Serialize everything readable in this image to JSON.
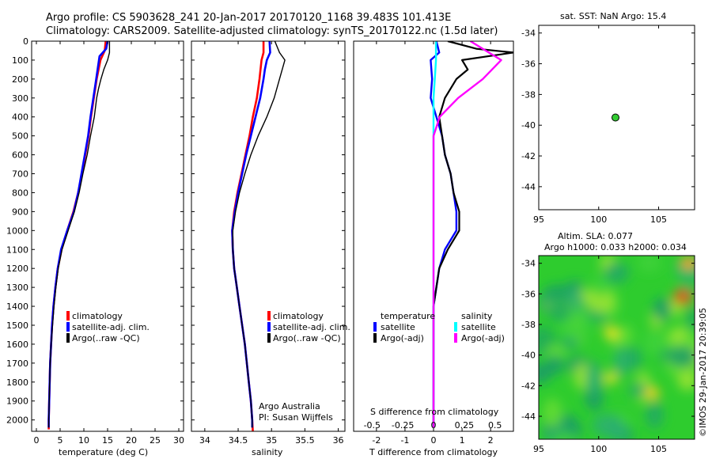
{
  "title_line1": "Argo profile: CS 5903628_241 20-Jan-2017 20170120_1168 39.483S 101.413E",
  "title_line2": "Climatology: CARS2009. Satellite-adjusted climatology: synTS_20170122.nc (1.5d later)",
  "map_title": "sat. SST: NaN Argo: 15.4",
  "sla_title_1": "Altim. SLA: 0.077",
  "sla_title_2": "Argo h1000: 0.033 h2000: 0.034",
  "credit_1": "Argo Australia",
  "credit_2": "PI: Susan Wijffels",
  "copyright": "©IMOS 29-Jan-2017 20:39:05",
  "colors": {
    "climatology": "#ff0000",
    "satellite": "#0000ff",
    "argo": "#000000",
    "salinity_satellite": "#00ffff",
    "salinity_argo": "#ff00ff",
    "float_marker": "#33cc33"
  },
  "chart_data": [
    {
      "type": "line",
      "xlabel": "temperature (deg C)",
      "ylabel": "",
      "xlim": [
        -1,
        31
      ],
      "ylim": [
        2060,
        0
      ],
      "xticks": [
        0,
        5,
        10,
        15,
        20,
        25,
        30
      ],
      "yticks": [
        0,
        100,
        200,
        300,
        400,
        500,
        600,
        700,
        800,
        900,
        1000,
        1100,
        1200,
        1300,
        1400,
        1500,
        1600,
        1700,
        1800,
        1900,
        2000
      ],
      "legend": [
        "climatology",
        "satellite-adj. clim.",
        "Argo(..raw -QC)"
      ],
      "series": [
        {
          "name": "climatology",
          "points": [
            [
              14.6,
              0
            ],
            [
              14.4,
              50
            ],
            [
              13.5,
              100
            ],
            [
              12.7,
              200
            ],
            [
              12.1,
              300
            ],
            [
              11.5,
              400
            ],
            [
              11.0,
              500
            ],
            [
              10.3,
              600
            ],
            [
              9.6,
              700
            ],
            [
              8.8,
              800
            ],
            [
              7.8,
              900
            ],
            [
              6.5,
              1000
            ],
            [
              5.3,
              1100
            ],
            [
              4.5,
              1200
            ],
            [
              4.0,
              1300
            ],
            [
              3.6,
              1400
            ],
            [
              3.3,
              1500
            ],
            [
              3.1,
              1600
            ],
            [
              2.9,
              1700
            ],
            [
              2.8,
              1800
            ],
            [
              2.7,
              1900
            ],
            [
              2.6,
              2000
            ],
            [
              2.6,
              2050
            ]
          ]
        },
        {
          "name": "satellite-adj. clim.",
          "points": [
            [
              15.0,
              0
            ],
            [
              14.7,
              40
            ],
            [
              13.3,
              80
            ],
            [
              12.6,
              200
            ],
            [
              12.0,
              300
            ],
            [
              11.4,
              400
            ],
            [
              10.9,
              500
            ],
            [
              10.2,
              600
            ],
            [
              9.5,
              700
            ],
            [
              8.8,
              800
            ],
            [
              7.9,
              900
            ],
            [
              6.5,
              1000
            ],
            [
              5.2,
              1100
            ],
            [
              4.5,
              1200
            ],
            [
              4.0,
              1300
            ],
            [
              3.6,
              1400
            ],
            [
              3.3,
              1500
            ],
            [
              3.1,
              1600
            ],
            [
              2.9,
              1700
            ],
            [
              2.8,
              1800
            ],
            [
              2.7,
              1900
            ],
            [
              2.6,
              2000
            ],
            [
              2.6,
              2040
            ]
          ]
        },
        {
          "name": "Argo(..raw -QC)",
          "points": [
            [
              15.4,
              0
            ],
            [
              15.4,
              60
            ],
            [
              15.0,
              100
            ],
            [
              14.2,
              150
            ],
            [
              13.6,
              200
            ],
            [
              13.1,
              250
            ],
            [
              12.7,
              300
            ],
            [
              12.2,
              400
            ],
            [
              11.4,
              500
            ],
            [
              10.7,
              600
            ],
            [
              9.8,
              700
            ],
            [
              9.0,
              800
            ],
            [
              8.0,
              900
            ],
            [
              6.7,
              1000
            ],
            [
              5.4,
              1100
            ],
            [
              4.6,
              1200
            ],
            [
              4.1,
              1300
            ],
            [
              3.7,
              1400
            ],
            [
              3.4,
              1500
            ],
            [
              3.1,
              1600
            ],
            [
              2.9,
              1700
            ],
            [
              2.8,
              1800
            ],
            [
              2.7,
              1900
            ],
            [
              2.6,
              2000
            ],
            [
              2.6,
              2040
            ]
          ]
        }
      ]
    },
    {
      "type": "line",
      "xlabel": "salinity",
      "ylabel": "",
      "xlim": [
        33.8,
        36.1
      ],
      "ylim": [
        2060,
        0
      ],
      "xticks": [
        34,
        34.5,
        35,
        35.5,
        36
      ],
      "legend": [
        "climatology",
        "satellite-adj. clim.",
        "Argo(..raw -QC)"
      ],
      "series": [
        {
          "name": "climatology",
          "points": [
            [
              34.88,
              0
            ],
            [
              34.88,
              60
            ],
            [
              34.85,
              100
            ],
            [
              34.82,
              200
            ],
            [
              34.78,
              300
            ],
            [
              34.72,
              400
            ],
            [
              34.67,
              500
            ],
            [
              34.61,
              600
            ],
            [
              34.55,
              700
            ],
            [
              34.49,
              800
            ],
            [
              34.44,
              900
            ],
            [
              34.41,
              1000
            ],
            [
              34.42,
              1100
            ],
            [
              34.44,
              1200
            ],
            [
              34.48,
              1300
            ],
            [
              34.52,
              1400
            ],
            [
              34.56,
              1500
            ],
            [
              34.6,
              1600
            ],
            [
              34.63,
              1700
            ],
            [
              34.66,
              1800
            ],
            [
              34.69,
              1900
            ],
            [
              34.71,
              2000
            ],
            [
              34.72,
              2060
            ]
          ]
        },
        {
          "name": "satellite-adj. clim.",
          "points": [
            [
              34.97,
              0
            ],
            [
              34.98,
              60
            ],
            [
              34.93,
              100
            ],
            [
              34.9,
              150
            ],
            [
              34.88,
              200
            ],
            [
              34.83,
              300
            ],
            [
              34.76,
              400
            ],
            [
              34.69,
              500
            ],
            [
              34.62,
              600
            ],
            [
              34.56,
              700
            ],
            [
              34.5,
              800
            ],
            [
              34.45,
              900
            ],
            [
              34.41,
              1000
            ],
            [
              34.42,
              1100
            ],
            [
              34.44,
              1200
            ],
            [
              34.48,
              1300
            ],
            [
              34.52,
              1400
            ],
            [
              34.56,
              1500
            ],
            [
              34.6,
              1600
            ],
            [
              34.63,
              1700
            ],
            [
              34.66,
              1800
            ],
            [
              34.69,
              1900
            ],
            [
              34.71,
              2000
            ],
            [
              34.71,
              2040
            ]
          ]
        },
        {
          "name": "Argo(..raw -QC)",
          "points": [
            [
              35.05,
              0
            ],
            [
              35.12,
              60
            ],
            [
              35.2,
              100
            ],
            [
              35.12,
              200
            ],
            [
              35.04,
              300
            ],
            [
              34.93,
              400
            ],
            [
              34.8,
              500
            ],
            [
              34.69,
              600
            ],
            [
              34.6,
              700
            ],
            [
              34.52,
              800
            ],
            [
              34.46,
              900
            ],
            [
              34.42,
              1000
            ],
            [
              34.42,
              1100
            ],
            [
              34.44,
              1200
            ],
            [
              34.48,
              1300
            ],
            [
              34.52,
              1400
            ],
            [
              34.56,
              1500
            ],
            [
              34.6,
              1600
            ],
            [
              34.63,
              1700
            ],
            [
              34.66,
              1800
            ],
            [
              34.69,
              1900
            ],
            [
              34.71,
              2000
            ],
            [
              34.71,
              2040
            ]
          ]
        }
      ]
    },
    {
      "type": "line",
      "xlabel": "T difference from climatology",
      "xlabel_top": "S difference from climatology",
      "xlim": [
        -2.8,
        2.8
      ],
      "ylim": [
        2060,
        0
      ],
      "xticks": [
        -2,
        -1,
        0,
        1,
        2
      ],
      "sticks": [
        -0.5,
        -0.25,
        0,
        0.25,
        0.5
      ],
      "legend_titles": [
        "temperature",
        "salinity"
      ],
      "legend": [
        "satellite",
        "Argo(-adj)",
        "satellite",
        "Argo(-adj)"
      ],
      "series": [
        {
          "name": "satellite",
          "quantity": "temperature",
          "points": [
            [
              0.1,
              0
            ],
            [
              0.2,
              60
            ],
            [
              -0.1,
              100
            ],
            [
              -0.05,
              200
            ],
            [
              -0.1,
              300
            ],
            [
              0.1,
              400
            ],
            [
              0.3,
              500
            ],
            [
              0.4,
              600
            ],
            [
              0.6,
              700
            ],
            [
              0.7,
              800
            ],
            [
              0.8,
              900
            ],
            [
              0.8,
              1000
            ],
            [
              0.4,
              1100
            ],
            [
              0.2,
              1200
            ],
            [
              0.1,
              1300
            ],
            [
              0,
              1400
            ],
            [
              0,
              2040
            ]
          ]
        },
        {
          "name": "Argo(-adj)",
          "quantity": "temperature",
          "points": [
            [
              0.5,
              0
            ],
            [
              1.5,
              40
            ],
            [
              2.8,
              60
            ],
            [
              1.0,
              100
            ],
            [
              1.2,
              150
            ],
            [
              0.8,
              200
            ],
            [
              0.4,
              300
            ],
            [
              0.2,
              400
            ],
            [
              0.3,
              500
            ],
            [
              0.4,
              600
            ],
            [
              0.6,
              700
            ],
            [
              0.7,
              800
            ],
            [
              0.9,
              900
            ],
            [
              0.9,
              1000
            ],
            [
              0.5,
              1100
            ],
            [
              0.2,
              1200
            ],
            [
              0.1,
              1300
            ],
            [
              0,
              1400
            ],
            [
              0,
              2040
            ]
          ]
        },
        {
          "name": "satellite",
          "quantity": "salinity",
          "points": [
            [
              0.02,
              0
            ],
            [
              0.02,
              100
            ],
            [
              0.01,
              200
            ],
            [
              0,
              300
            ],
            [
              0,
              2040
            ]
          ]
        },
        {
          "name": "Argo(-adj)",
          "quantity": "salinity",
          "points": [
            [
              0.3,
              0
            ],
            [
              0.45,
              60
            ],
            [
              0.55,
              100
            ],
            [
              0.4,
              200
            ],
            [
              0.2,
              300
            ],
            [
              0.05,
              400
            ],
            [
              0,
              500
            ],
            [
              0,
              2040
            ]
          ]
        }
      ]
    },
    {
      "type": "scatter",
      "title": "sat. SST: NaN Argo: 15.4",
      "xlim": [
        95,
        108
      ],
      "ylim": [
        -45.5,
        -33.5
      ],
      "xticks": [
        95,
        100,
        105
      ],
      "yticks": [
        -34,
        -36,
        -38,
        -40,
        -42,
        -44
      ],
      "points": [
        [
          101.4,
          -39.5
        ]
      ]
    },
    {
      "type": "heatmap",
      "title": "Altim. SLA: 0.077",
      "xlim": [
        95,
        108
      ],
      "ylim": [
        -45.5,
        -33.5
      ],
      "xticks": [
        95,
        100,
        105
      ],
      "yticks": [
        -34,
        -36,
        -38,
        -40,
        -42,
        -44
      ],
      "highlights": [
        [
          107,
          -36.2
        ],
        [
          101,
          -38.5
        ],
        [
          101,
          -41.5
        ],
        [
          104.5,
          -42.5
        ]
      ]
    }
  ]
}
